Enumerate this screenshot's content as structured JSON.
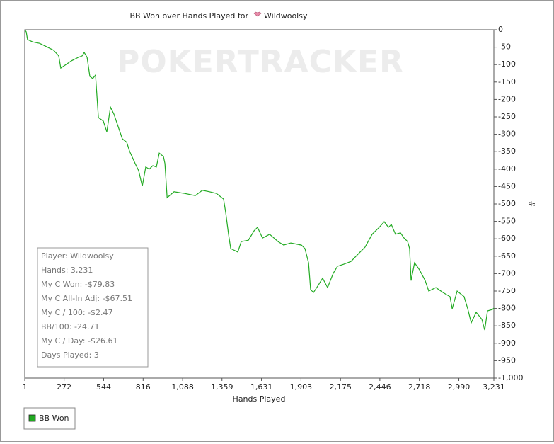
{
  "chart_data": {
    "type": "line",
    "title": "BB Won over Hands Played for",
    "player": "Wildwoolsy",
    "watermark": "POKERTRACKER",
    "x_label": "Hands Played",
    "y_label": "#",
    "xlim": [
      1,
      3231
    ],
    "ylim": [
      -1000,
      0
    ],
    "xticks": [
      1,
      272,
      544,
      816,
      {
        "value": 1088,
        "label": "1,088"
      },
      {
        "value": 1359,
        "label": "1,359"
      },
      {
        "value": 1631,
        "label": "1,631"
      },
      {
        "value": 1903,
        "label": "1,903"
      },
      {
        "value": 2175,
        "label": "2,175"
      },
      {
        "value": 2446,
        "label": "2,446"
      },
      {
        "value": 2718,
        "label": "2,718"
      },
      {
        "value": 2990,
        "label": "2,990"
      },
      {
        "value": 3231,
        "label": "3,231"
      }
    ],
    "yticks": [
      0,
      -50,
      -100,
      -150,
      -200,
      -250,
      -300,
      -350,
      -400,
      -450,
      -500,
      -550,
      -600,
      -650,
      -700,
      -750,
      -800,
      -850,
      -900,
      -950,
      {
        "value": -1000,
        "label": "-1,000"
      }
    ],
    "grid": false,
    "legend_position": "bottom-left",
    "series": [
      {
        "name": "BB Won",
        "color": "#22aa22",
        "x": [
          1,
          11,
          20,
          55,
          103,
          152,
          200,
          235,
          249,
          284,
          323,
          371,
          396,
          410,
          430,
          449,
          469,
          488,
          508,
          542,
          566,
          591,
          615,
          639,
          673,
          703,
          722,
          761,
          785,
          810,
          834,
          858,
          883,
          907,
          927,
          956,
          966,
          981,
          1029,
          1102,
          1175,
          1224,
          1273,
          1321,
          1370,
          1385,
          1404,
          1419,
          1468,
          1492,
          1541,
          1580,
          1604,
          1638,
          1687,
          1745,
          1784,
          1833,
          1906,
          1930,
          1955,
          1969,
          1989,
          2018,
          2052,
          2086,
          2125,
          2154,
          2198,
          2247,
          2296,
          2344,
          2393,
          2442,
          2476,
          2505,
          2525,
          2554,
          2588,
          2613,
          2637,
          2651,
          2661,
          2685,
          2719,
          2758,
          2783,
          2832,
          2880,
          2929,
          2944,
          2978,
          3026,
          3051,
          3075,
          3109,
          3148,
          3168,
          3187,
          3221,
          3231
        ],
        "values": [
          0,
          -6,
          -28,
          -35,
          -39,
          -49,
          -59,
          -75,
          -110,
          -100,
          -89,
          -79,
          -75,
          -65,
          -79,
          -134,
          -140,
          -130,
          -252,
          -262,
          -293,
          -222,
          -242,
          -272,
          -313,
          -323,
          -348,
          -384,
          -404,
          -449,
          -394,
          -400,
          -390,
          -394,
          -354,
          -364,
          -384,
          -482,
          -465,
          -470,
          -476,
          -461,
          -465,
          -470,
          -486,
          -526,
          -587,
          -628,
          -638,
          -608,
          -604,
          -577,
          -567,
          -598,
          -587,
          -608,
          -618,
          -612,
          -618,
          -628,
          -669,
          -746,
          -754,
          -736,
          -713,
          -740,
          -699,
          -679,
          -673,
          -665,
          -644,
          -624,
          -587,
          -567,
          -551,
          -567,
          -559,
          -587,
          -583,
          -598,
          -608,
          -628,
          -720,
          -669,
          -689,
          -720,
          -750,
          -740,
          -754,
          -766,
          -801,
          -750,
          -766,
          -801,
          -841,
          -811,
          -831,
          -862,
          -807,
          -803,
          -799
        ]
      }
    ],
    "stats_box": {
      "lines": [
        "Player: Wildwoolsy",
        "Hands: 3,231",
        "My C Won: -$79.83",
        "My C All-In Adj: -$67.51",
        "My C / 100: -$2.47",
        "BB/100: -24.71",
        "My C / Day: -$26.61",
        "Days Played: 3"
      ]
    }
  }
}
